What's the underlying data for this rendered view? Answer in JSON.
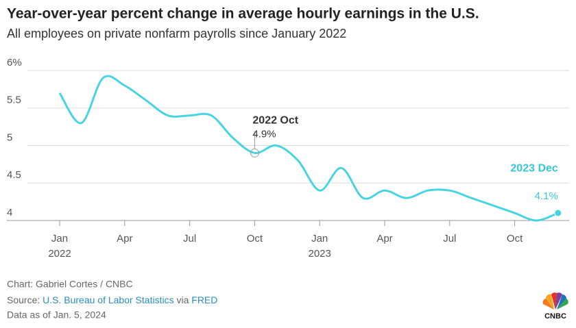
{
  "chart_data": {
    "type": "line",
    "title": "Year-over-year percent change in average hourly earnings in the U.S.",
    "subtitle": "All employees on private nonfarm payrolls since January 2022",
    "categories": [
      "Jan",
      null,
      null,
      "Apr",
      null,
      null,
      "Jul",
      null,
      null,
      "Oct",
      null,
      null,
      "Jan",
      null,
      null,
      "Apr",
      null,
      null,
      "Jul",
      null,
      null,
      "Oct",
      null,
      null
    ],
    "category_years": [
      "2022",
      null,
      null,
      null,
      null,
      null,
      null,
      null,
      null,
      null,
      null,
      null,
      "2023",
      null,
      null,
      null,
      null,
      null,
      null,
      null,
      null,
      null,
      null,
      null
    ],
    "series": [
      {
        "name": "Average hourly earnings",
        "color": "#47d4e0",
        "values": [
          5.7,
          5.3,
          5.9,
          5.8,
          5.6,
          5.4,
          5.4,
          5.4,
          5.1,
          4.9,
          5.0,
          4.8,
          4.4,
          4.7,
          4.3,
          4.4,
          4.3,
          4.4,
          4.4,
          4.3,
          4.2,
          4.1,
          4.0,
          4.1
        ]
      }
    ],
    "annotations": [
      {
        "index": 9,
        "title": "2022 Oct",
        "label": "4.9%",
        "color": "#333333"
      },
      {
        "index": 23,
        "title": "2023 Dec",
        "label": "4.1%",
        "color": "#36c6d6"
      }
    ],
    "ylim": [
      4,
      6
    ],
    "yticks": [
      4,
      4.5,
      5,
      5.5,
      {
        "value": 6,
        "label": "6%"
      }
    ],
    "grid": true,
    "credit": "Chart: Gabriel Cortes / CNBC",
    "source_prefix": "Source:",
    "source_link": "U.S. Bureau of Labor Statistics",
    "source_via": "via",
    "source_link2": "FRED",
    "note": "Data as of Jan. 5, 2024",
    "logo": "CNBC"
  }
}
